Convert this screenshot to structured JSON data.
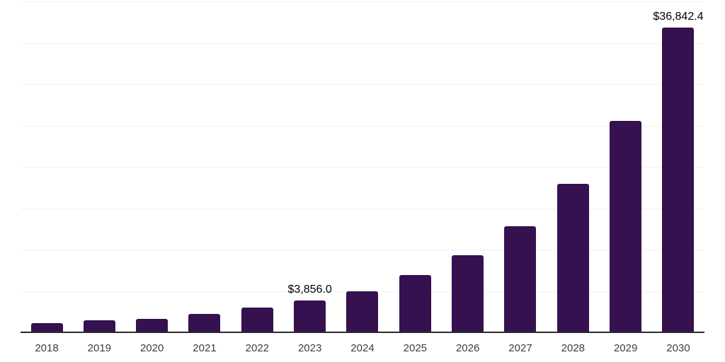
{
  "chart_data": {
    "type": "bar",
    "categories": [
      "2018",
      "2019",
      "2020",
      "2021",
      "2022",
      "2023",
      "2024",
      "2025",
      "2026",
      "2027",
      "2028",
      "2029",
      "2030"
    ],
    "values": [
      1150,
      1430,
      1660,
      2240,
      3000,
      3856.0,
      4990,
      6930,
      9350,
      12830,
      17940,
      25540,
      36842.4
    ],
    "data_labels": [
      "",
      "",
      "",
      "",
      "",
      "$3,856.0",
      "",
      "",
      "",
      "",
      "",
      "",
      "$36,842.4"
    ],
    "ylim": [
      0,
      40000
    ],
    "gridline_step": 5000,
    "grid": "horizontal",
    "legend": "none",
    "bar_color": "#351150",
    "axis_color": "#2b2b2b",
    "gridline_color": "#f1f1f2",
    "data_label_color": "#000000",
    "tick_label_color": "#3d3d3d"
  }
}
